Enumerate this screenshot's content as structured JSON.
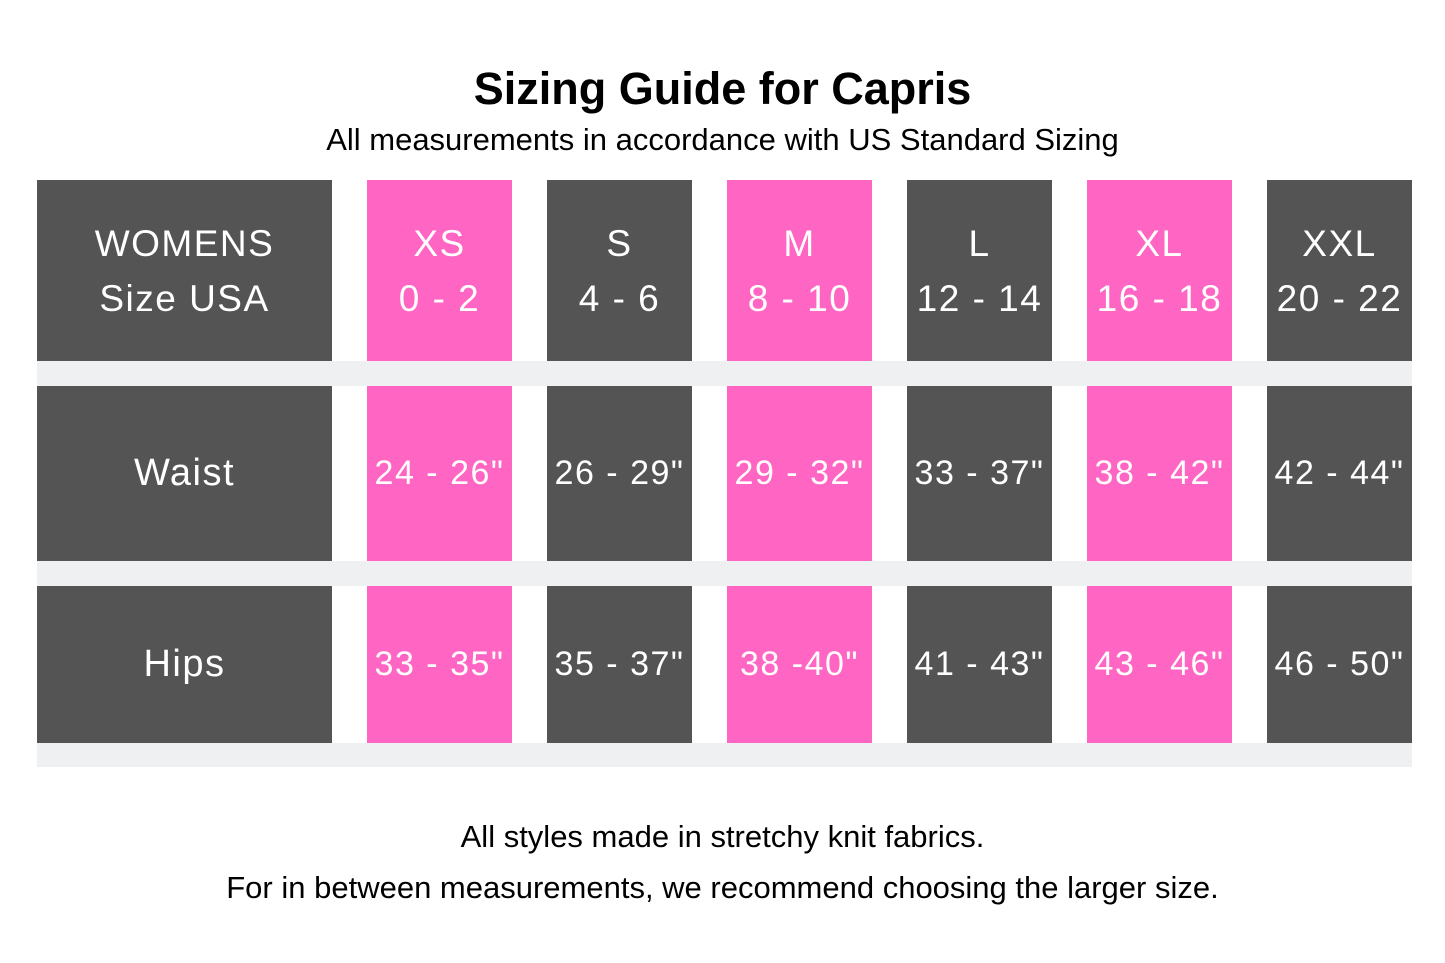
{
  "page": {
    "title": "Sizing Guide for Capris",
    "subtitle": "All measurements in accordance with US Standard Sizing",
    "footer_lines": [
      "All styles made in stretchy knit fabrics.",
      "For in between measurements, we recommend choosing the larger size."
    ]
  },
  "colors": {
    "pink": "#ff66c4",
    "dark_gray": "#545454",
    "band_gray": "#eef0f2",
    "cell_text": "#ffffff",
    "text": "#000000"
  },
  "chart_data": {
    "type": "table",
    "header": {
      "label_line1": "WOMENS",
      "label_line2": "Size USA",
      "sizes": [
        {
          "name": "XS",
          "range": "0 - 2",
          "highlight": true
        },
        {
          "name": "S",
          "range": "4 - 6",
          "highlight": false
        },
        {
          "name": "M",
          "range": "8 - 10",
          "highlight": true
        },
        {
          "name": "L",
          "range": "12 - 14",
          "highlight": false
        },
        {
          "name": "XL",
          "range": "16 - 18",
          "highlight": true
        },
        {
          "name": "XXL",
          "range": "20 - 22",
          "highlight": false
        }
      ]
    },
    "rows": [
      {
        "label": "Waist",
        "values": [
          "24 - 26\"",
          "26 - 29\"",
          "29 - 32\"",
          "33 - 37\"",
          "38 - 42\"",
          "42 - 44\""
        ]
      },
      {
        "label": "Hips",
        "values": [
          "33 - 35\"",
          "35 - 37\"",
          "38 -40\"",
          "41 - 43\"",
          "43 - 46\"",
          "46 - 50\""
        ]
      }
    ]
  }
}
